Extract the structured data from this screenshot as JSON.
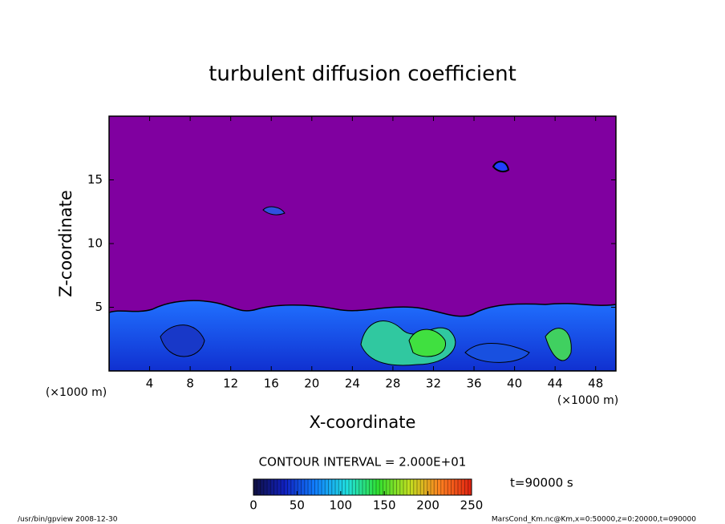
{
  "chart_data": {
    "type": "contour",
    "title": "turbulent diffusion coefficient",
    "x_label": "X-coordinate",
    "y_label": "Z-coordinate",
    "x_unit": "(×1000 m)",
    "x_unit_right": "(×1000 m)",
    "xlim": [
      0,
      50
    ],
    "xticks": [
      4,
      8,
      12,
      16,
      20,
      24,
      28,
      32,
      36,
      40,
      44,
      48
    ],
    "ylim": [
      0,
      20
    ],
    "yticks": [
      5,
      10,
      15
    ],
    "contour_interval": "CONTOUR INTERVAL = 2.000E+01",
    "time_label": "t=90000 s",
    "colorbar": {
      "lim": [
        0,
        250
      ],
      "ticks": [
        0,
        50,
        100,
        150,
        200,
        250
      ],
      "colors": [
        "#101040",
        "#1020c0",
        "#1080ff",
        "#20e0e0",
        "#30e030",
        "#c0e020",
        "#ff8020",
        "#e02010"
      ]
    },
    "background_color": "#8000a0",
    "footer_left": "/usr/bin/gpview   2008-12-30",
    "footer_right": "MarsCond_Km.nc@Km,x=0:50000,z=0:20000,t=090000"
  }
}
